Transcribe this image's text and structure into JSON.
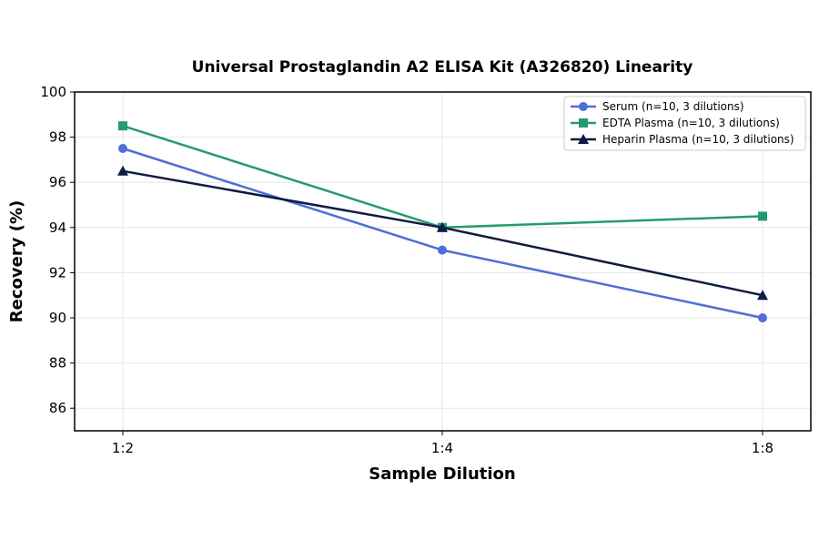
{
  "chart_data": {
    "type": "line",
    "title": "Universal Prostaglandin A2 ELISA Kit (A326820) Linearity",
    "xlabel": "Sample Dilution",
    "ylabel": "Recovery (%)",
    "categories": [
      "1:2",
      "1:4",
      "1:8"
    ],
    "ylim": [
      85,
      100
    ],
    "yticks": [
      86,
      88,
      90,
      92,
      94,
      96,
      98,
      100
    ],
    "grid": true,
    "legend_position": "top-right",
    "series": [
      {
        "name": "Serum (n=10, 3 dilutions)",
        "values": [
          97.5,
          93.0,
          90.0
        ],
        "color": "#4e6fd6",
        "marker": "circle"
      },
      {
        "name": "EDTA Plasma (n=10, 3 dilutions)",
        "values": [
          98.5,
          94.0,
          94.5
        ],
        "color": "#259a72",
        "marker": "square"
      },
      {
        "name": "Heparin Plasma (n=10, 3 dilutions)",
        "values": [
          96.5,
          94.0,
          91.0
        ],
        "color": "#0f1b45",
        "marker": "triangle"
      }
    ]
  }
}
